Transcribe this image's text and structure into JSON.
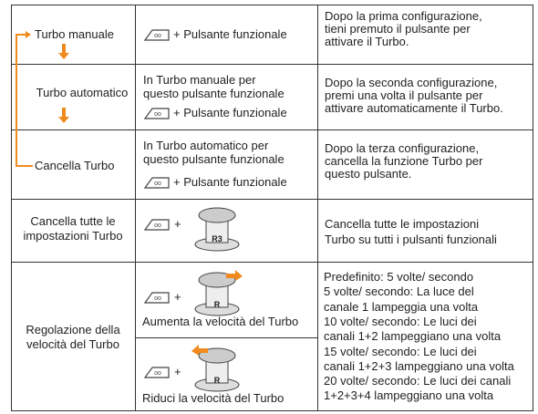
{
  "table": {
    "rows": [
      {
        "label": [
          "Turbo manuale"
        ],
        "action_lines": [],
        "action": "+ Pulsante funzionale",
        "description": [
          "Dopo la prima configurazione,",
          "tieni premuto il pulsante per",
          "attivare il Turbo."
        ]
      },
      {
        "label": [
          "Turbo automatico"
        ],
        "action_lines": [
          "In Turbo manuale per",
          "questo pulsante funzionale"
        ],
        "action": "+ Pulsante funzionale",
        "description": [
          "Dopo la seconda configurazione,",
          "premi una volta il pulsante per",
          "attivare automaticamente il Turbo."
        ]
      },
      {
        "label": [
          "Cancella Turbo"
        ],
        "action_lines": [
          "In Turbo automatico per",
          "questo pulsante funzionale"
        ],
        "action": "+ Pulsante funzionale",
        "description": [
          "Dopo la terza configurazione,",
          "cancella la funzione Turbo per",
          "questo pulsante."
        ]
      },
      {
        "label": [
          "Cancella tutte le",
          "impostazioni Turbo"
        ],
        "action": "+",
        "stick": "R3",
        "description": [
          "Cancella tutte le impostazioni",
          "Turbo su tutti i pulsanti funzionali"
        ]
      },
      {
        "label": [
          "Regolazione della",
          "velocità del Turbo"
        ],
        "actions": [
          {
            "plus": "+",
            "stick": "R",
            "caption": "Aumenta la velocità del Turbo"
          },
          {
            "plus": "+",
            "stick": "R",
            "caption": "Riduci la velocità del Turbo"
          }
        ],
        "description": [
          "Predefinito: 5 volte/ secondo",
          "5 volte/ secondo: La luce del",
          "canale 1 lampeggia una volta",
          "10 volte/ secondo: Le luci dei",
          "canali 1+2 lampeggiano una volta",
          "15 volte/ secondo: Le luci dei",
          "canali 1+2+3 lampeggiano una volta",
          "20 volte/ secondo: Le luci dei canali",
          "1+2+3+4 lampeggiano una volta"
        ]
      }
    ]
  }
}
